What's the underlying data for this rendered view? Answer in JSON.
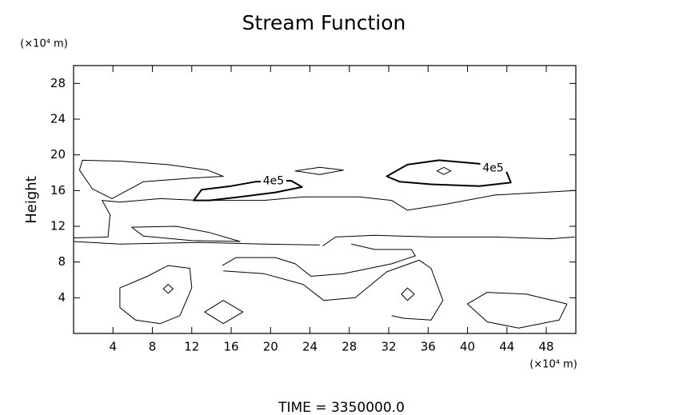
{
  "chart_data": {
    "type": "contour",
    "title": "Stream Function",
    "y_label": "Height",
    "y_unit": "(×10⁴ m)",
    "x_unit": "(×10⁴ m)",
    "footer": "TIME  =  3350000.0",
    "xlim": [
      0,
      51
    ],
    "ylim": [
      0,
      30
    ],
    "xticks": [
      4,
      8,
      12,
      16,
      20,
      24,
      28,
      32,
      36,
      40,
      44,
      48
    ],
    "yticks": [
      4,
      8,
      12,
      16,
      20,
      24,
      28
    ],
    "color": "#000000",
    "contours": [
      {
        "closed": true,
        "x": [
          0.9,
          4.7,
          9.6,
          13.6,
          15.2,
          12.0,
          7.1,
          3.9,
          1.9,
          0.6
        ],
        "y": [
          19.4,
          19.3,
          18.9,
          18.3,
          17.6,
          17.4,
          17.0,
          15.1,
          16.2,
          18.3
        ]
      },
      {
        "closed": false,
        "x": [
          0,
          3.5,
          3.7,
          2.9,
          4.7,
          8.8,
          12.8,
          19.3,
          23.3,
          29.0,
          32.3,
          33.9,
          37.9,
          42.8,
          47.6,
          50.9
        ],
        "y": [
          10.7,
          10.8,
          13.3,
          14.9,
          14.7,
          15.1,
          14.9,
          14.9,
          15.3,
          15.3,
          14.9,
          13.8,
          14.5,
          15.5,
          15.8,
          16.0
        ]
      },
      {
        "closed": true,
        "level": 400000,
        "label": "4e5",
        "x": [
          12.2,
          13.0,
          16.0,
          18.5,
          22.1,
          23.2,
          20.5,
          16.9,
          13.8
        ],
        "y": [
          14.9,
          16.1,
          16.5,
          17.0,
          17.1,
          16.4,
          15.8,
          15.3,
          14.9
        ]
      },
      {
        "closed": true,
        "level": 400000,
        "label": "4e5",
        "x": [
          31.8,
          33.9,
          37.1,
          41.2,
          44.0,
          44.4,
          41.2,
          36.3,
          33.1
        ],
        "y": [
          17.6,
          18.9,
          19.4,
          19.0,
          18.0,
          16.9,
          16.5,
          16.7,
          17.0
        ]
      },
      {
        "closed": true,
        "x": [
          36.9,
          37.6,
          38.3,
          37.6
        ],
        "y": [
          18.2,
          18.6,
          18.2,
          17.8
        ]
      },
      {
        "closed": true,
        "x": [
          5.9,
          10.4,
          13.8,
          16.9,
          12.0,
          7.1
        ],
        "y": [
          11.9,
          12.0,
          11.3,
          10.3,
          10.4,
          10.9
        ]
      },
      {
        "closed": false,
        "x": [
          0,
          4.7,
          12.8,
          19.3,
          25.0
        ],
        "y": [
          10.3,
          10.0,
          10.2,
          10.0,
          9.9
        ]
      },
      {
        "closed": false,
        "x": [
          25.3,
          26.6,
          30.6,
          36.3,
          42.8,
          48.5,
          50.9
        ],
        "y": [
          9.8,
          10.8,
          11.0,
          10.8,
          10.8,
          10.6,
          10.8
        ]
      },
      {
        "closed": false,
        "x": [
          15.2,
          19.3,
          23.3,
          25.4,
          28.6,
          31.8,
          35.1,
          36.3,
          37.5,
          36.3,
          33.5,
          32.3
        ],
        "y": [
          7.0,
          6.7,
          5.5,
          3.7,
          4.0,
          6.9,
          8.2,
          7.3,
          3.7,
          1.5,
          1.7,
          2.0
        ]
      },
      {
        "closed": false,
        "x": [
          15.1,
          16.5,
          20.5,
          22.5,
          24.1,
          27.4,
          32.3,
          34.7,
          34.3,
          30.6,
          28.2
        ],
        "y": [
          7.6,
          8.5,
          8.5,
          7.8,
          6.4,
          6.7,
          7.8,
          8.7,
          9.4,
          9.4,
          10.0
        ]
      },
      {
        "closed": true,
        "x": [
          4.7,
          7.5,
          9.6,
          11.8,
          12.0,
          10.8,
          8.8,
          6.3,
          4.7
        ],
        "y": [
          5.1,
          6.4,
          7.6,
          7.3,
          5.1,
          2.0,
          1.1,
          1.5,
          2.9
        ]
      },
      {
        "closed": true,
        "x": [
          9.1,
          9.6,
          10.1,
          9.6
        ],
        "y": [
          5.0,
          5.5,
          5.0,
          4.5
        ]
      },
      {
        "closed": true,
        "x": [
          13.3,
          15.2,
          17.2,
          15.2
        ],
        "y": [
          2.4,
          3.7,
          2.4,
          1.1
        ]
      },
      {
        "closed": true,
        "x": [
          33.3,
          33.9,
          34.6,
          33.9
        ],
        "y": [
          4.4,
          5.1,
          4.4,
          3.7
        ]
      },
      {
        "closed": true,
        "x": [
          40.0,
          42.0,
          46.0,
          50.1,
          49.3,
          45.2,
          42.0
        ],
        "y": [
          3.3,
          4.6,
          4.4,
          3.3,
          1.5,
          0.6,
          1.3
        ]
      },
      {
        "closed": true,
        "x": [
          22.5,
          25.0,
          27.4,
          25.0
        ],
        "y": [
          18.2,
          18.6,
          18.3,
          17.8
        ]
      }
    ]
  }
}
